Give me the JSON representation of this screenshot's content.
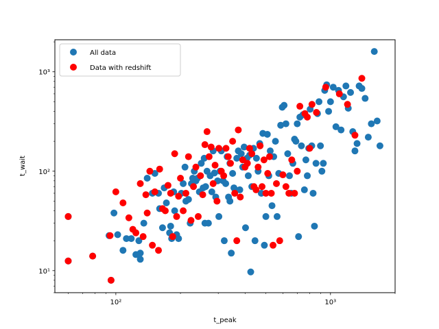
{
  "chart_data": {
    "type": "scatter",
    "xlabel": "t_peak",
    "ylabel": "t_wait",
    "xscale": "log",
    "yscale": "log",
    "xlim": [
      52,
      2000
    ],
    "ylim": [
      6,
      2100
    ],
    "x_major_ticks": [
      100,
      1000
    ],
    "x_major_tick_labels": [
      "10²",
      "10³"
    ],
    "y_major_ticks": [
      10,
      100,
      1000
    ],
    "y_major_tick_labels": [
      "10¹",
      "10²",
      "10³"
    ],
    "grid": false,
    "legend_position": "upper-left",
    "series": [
      {
        "name": "All data",
        "color": "#1f77b4",
        "points": [
          [
            60,
            35
          ],
          [
            60,
            12.5
          ],
          [
            78,
            14
          ],
          [
            93,
            22.5
          ],
          [
            95,
            8
          ],
          [
            98,
            38
          ],
          [
            102,
            23
          ],
          [
            108,
            16
          ],
          [
            112,
            21
          ],
          [
            118,
            21
          ],
          [
            124,
            14.5
          ],
          [
            128,
            20
          ],
          [
            130,
            13
          ],
          [
            135,
            30
          ],
          [
            140,
            85
          ],
          [
            148,
            60
          ],
          [
            152,
            95
          ],
          [
            158,
            60
          ],
          [
            160,
            42
          ],
          [
            165,
            27
          ],
          [
            168,
            68
          ],
          [
            172,
            48
          ],
          [
            178,
            24
          ],
          [
            182,
            21
          ],
          [
            186,
            62
          ],
          [
            188,
            40
          ],
          [
            192,
            23
          ],
          [
            196,
            21
          ],
          [
            202,
            60
          ],
          [
            206,
            75
          ],
          [
            210,
            110
          ],
          [
            212,
            50
          ],
          [
            218,
            52
          ],
          [
            222,
            30
          ],
          [
            225,
            75
          ],
          [
            228,
            85
          ],
          [
            232,
            100
          ],
          [
            236,
            80
          ],
          [
            240,
            85
          ],
          [
            245,
            62
          ],
          [
            250,
            120
          ],
          [
            255,
            68
          ],
          [
            258,
            135
          ],
          [
            262,
            70
          ],
          [
            266,
            100
          ],
          [
            270,
            30
          ],
          [
            275,
            90
          ],
          [
            280,
            62
          ],
          [
            284,
            160
          ],
          [
            288,
            96
          ],
          [
            292,
            55
          ],
          [
            298,
            80
          ],
          [
            302,
            35
          ],
          [
            306,
            100
          ],
          [
            310,
            160
          ],
          [
            316,
            80
          ],
          [
            320,
            20
          ],
          [
            325,
            75
          ],
          [
            330,
            140
          ],
          [
            335,
            55
          ],
          [
            340,
            120
          ],
          [
            345,
            15
          ],
          [
            350,
            95
          ],
          [
            355,
            68
          ],
          [
            360,
            65
          ],
          [
            366,
            135
          ],
          [
            372,
            160
          ],
          [
            378,
            65
          ],
          [
            384,
            150
          ],
          [
            390,
            110
          ],
          [
            396,
            175
          ],
          [
            402,
            27
          ],
          [
            408,
            135
          ],
          [
            414,
            90
          ],
          [
            420,
            145
          ],
          [
            425,
            9.7
          ],
          [
            430,
            70
          ],
          [
            438,
            170
          ],
          [
            445,
            20
          ],
          [
            452,
            135
          ],
          [
            460,
            100
          ],
          [
            468,
            190
          ],
          [
            476,
            60
          ],
          [
            484,
            240
          ],
          [
            492,
            18
          ],
          [
            500,
            35
          ],
          [
            508,
            235
          ],
          [
            516,
            90
          ],
          [
            524,
            160
          ],
          [
            534,
            45
          ],
          [
            544,
            140
          ],
          [
            554,
            200
          ],
          [
            564,
            35
          ],
          [
            574,
            95
          ],
          [
            586,
            290
          ],
          [
            596,
            440
          ],
          [
            608,
            460
          ],
          [
            620,
            300
          ],
          [
            632,
            150
          ],
          [
            644,
            90
          ],
          [
            656,
            60
          ],
          [
            668,
            120
          ],
          [
            680,
            210
          ],
          [
            690,
            200
          ],
          [
            700,
            300
          ],
          [
            710,
            22
          ],
          [
            720,
            350
          ],
          [
            732,
            180
          ],
          [
            744,
            370
          ],
          [
            756,
            65
          ],
          [
            768,
            130
          ],
          [
            780,
            90
          ],
          [
            792,
            170
          ],
          [
            804,
            420
          ],
          [
            818,
            180
          ],
          [
            830,
            60
          ],
          [
            842,
            28
          ],
          [
            856,
            120
          ],
          [
            870,
            380
          ],
          [
            884,
            500
          ],
          [
            898,
            180
          ],
          [
            912,
            100
          ],
          [
            926,
            120
          ],
          [
            940,
            650
          ],
          [
            960,
            740
          ],
          [
            980,
            400
          ],
          [
            1000,
            500
          ],
          [
            1030,
            700
          ],
          [
            1060,
            280
          ],
          [
            1090,
            650
          ],
          [
            1120,
            260
          ],
          [
            1150,
            560
          ],
          [
            1180,
            720
          ],
          [
            1210,
            430
          ],
          [
            1240,
            620
          ],
          [
            1270,
            250
          ],
          [
            1300,
            160
          ],
          [
            1330,
            190
          ],
          [
            1360,
            720
          ],
          [
            1400,
            680
          ],
          [
            1450,
            540
          ],
          [
            1500,
            220
          ],
          [
            1550,
            300
          ],
          [
            1600,
            1600
          ],
          [
            1650,
            320
          ],
          [
            1700,
            180
          ],
          [
            130,
            15
          ],
          [
            180,
            28
          ],
          [
            260,
            30
          ],
          [
            340,
            50
          ]
        ]
      },
      {
        "name": "Data with redshift",
        "color": "#ff0000",
        "points": [
          [
            60,
            35
          ],
          [
            60,
            12.5
          ],
          [
            78,
            14
          ],
          [
            94,
            22.5
          ],
          [
            95,
            8
          ],
          [
            100,
            62
          ],
          [
            108,
            48
          ],
          [
            115,
            34
          ],
          [
            120,
            26
          ],
          [
            124,
            24
          ],
          [
            130,
            75
          ],
          [
            134,
            22
          ],
          [
            138,
            58
          ],
          [
            140,
            38
          ],
          [
            144,
            100
          ],
          [
            148,
            18
          ],
          [
            152,
            62
          ],
          [
            158,
            16
          ],
          [
            160,
            105
          ],
          [
            165,
            42
          ],
          [
            170,
            40
          ],
          [
            175,
            72
          ],
          [
            180,
            60
          ],
          [
            184,
            22
          ],
          [
            188,
            150
          ],
          [
            192,
            35
          ],
          [
            196,
            56
          ],
          [
            200,
            85
          ],
          [
            206,
            40
          ],
          [
            212,
            60
          ],
          [
            218,
            140
          ],
          [
            224,
            32
          ],
          [
            230,
            70
          ],
          [
            236,
            110
          ],
          [
            242,
            35
          ],
          [
            248,
            90
          ],
          [
            254,
            58
          ],
          [
            260,
            185
          ],
          [
            266,
            250
          ],
          [
            272,
            140
          ],
          [
            278,
            175
          ],
          [
            284,
            75
          ],
          [
            290,
            115
          ],
          [
            296,
            50
          ],
          [
            302,
            170
          ],
          [
            310,
            100
          ],
          [
            318,
            90
          ],
          [
            326,
            170
          ],
          [
            334,
            140
          ],
          [
            342,
            120
          ],
          [
            350,
            200
          ],
          [
            358,
            60
          ],
          [
            366,
            20
          ],
          [
            372,
            260
          ],
          [
            380,
            55
          ],
          [
            390,
            130
          ],
          [
            400,
            110
          ],
          [
            410,
            120
          ],
          [
            420,
            170
          ],
          [
            430,
            150
          ],
          [
            440,
            70
          ],
          [
            450,
            65
          ],
          [
            460,
            110
          ],
          [
            470,
            180
          ],
          [
            480,
            70
          ],
          [
            490,
            130
          ],
          [
            500,
            60
          ],
          [
            510,
            95
          ],
          [
            520,
            140
          ],
          [
            530,
            60
          ],
          [
            540,
            18
          ],
          [
            560,
            75
          ],
          [
            580,
            20
          ],
          [
            600,
            92
          ],
          [
            620,
            70
          ],
          [
            640,
            60
          ],
          [
            660,
            130
          ],
          [
            680,
            60
          ],
          [
            700,
            100
          ],
          [
            720,
            450
          ],
          [
            760,
            380
          ],
          [
            780,
            350
          ],
          [
            800,
            170
          ],
          [
            820,
            470
          ],
          [
            860,
            390
          ],
          [
            950,
            700
          ],
          [
            1100,
            600
          ],
          [
            1200,
            470
          ],
          [
            1300,
            230
          ],
          [
            1400,
            860
          ]
        ]
      }
    ]
  }
}
